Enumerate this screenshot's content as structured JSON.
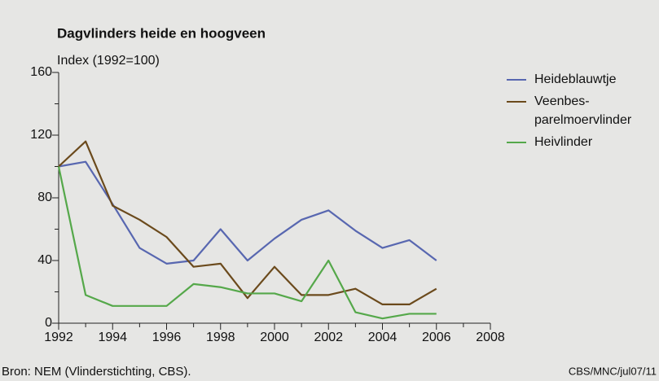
{
  "chart_data": {
    "type": "line",
    "title": "Dagvlinders heide en hoogveen",
    "y_label": "Index (1992=100)",
    "source": "Bron: NEM (Vlinderstichting, CBS).",
    "credit": "CBS/MNC/jul07/11",
    "x": [
      1992,
      1993,
      1994,
      1995,
      1996,
      1997,
      1998,
      1999,
      2000,
      2001,
      2002,
      2003,
      2004,
      2005,
      2006
    ],
    "series": [
      {
        "name": "Heideblauwtje",
        "color": "#5867b0",
        "values": [
          100,
          103,
          76,
          48,
          38,
          40,
          60,
          40,
          54,
          66,
          72,
          59,
          48,
          53,
          40
        ]
      },
      {
        "name": "Veenbes-parelmoervlinder",
        "color": "#6b4a1c",
        "values": [
          100,
          116,
          75,
          66,
          55,
          36,
          38,
          16,
          36,
          18,
          18,
          22,
          12,
          12,
          22
        ]
      },
      {
        "name": "Heivlinder",
        "color": "#55a84a",
        "values": [
          100,
          18,
          11,
          11,
          11,
          25,
          23,
          19,
          19,
          14,
          40,
          7,
          3,
          6,
          6
        ]
      }
    ],
    "xlim": [
      1992,
      2008
    ],
    "xticks": [
      1992,
      1994,
      1996,
      1998,
      2000,
      2002,
      2004,
      2006,
      2008
    ],
    "ylim": [
      0,
      160
    ],
    "yticks": [
      0,
      40,
      80,
      120,
      160
    ],
    "legend": "right"
  }
}
